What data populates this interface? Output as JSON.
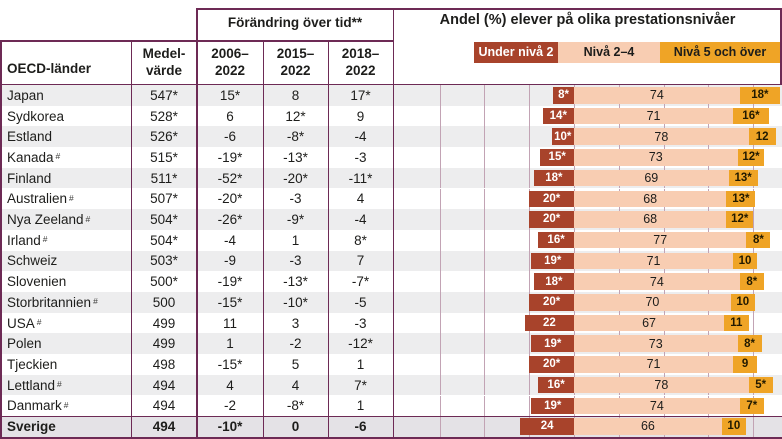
{
  "header": {
    "country_col": "OECD-länder",
    "mean_col_line1": "Medel-",
    "mean_col_line2": "värde",
    "change_group": "Förändring över tid**",
    "periods": [
      "2006–\n2022",
      "2015–\n2022",
      "2018–\n2022"
    ],
    "chart_title": "Andel (%) elever på olika prestationsnivåer"
  },
  "legend": [
    {
      "label": "Under nivå 2",
      "color": "#a8432b",
      "text_color": "#ffffff"
    },
    {
      "label": "Nivå 2–4",
      "color": "#f8cdb2",
      "text_color": "#1d1d1b"
    },
    {
      "label": "Nivå 5 och över",
      "color": "#efa426",
      "text_color": "#1d1d1b"
    }
  ],
  "colors": {
    "border": "#6d2a55",
    "stripe": "#ededee",
    "white_row": "#ffffff",
    "sweden_row_bg": "#e4e2e6",
    "gridline": "#c2a3b4",
    "under2": "#a8432b",
    "niva24": "#f8cdb2",
    "niva5": "#efa426",
    "text": "#1d1d1b"
  },
  "chart_data": {
    "type": "bar",
    "subtype": "diverging-stacked-horizontal",
    "unit": "%",
    "title": "Andel (%) elever på olika prestationsnivåer",
    "series_names": [
      "Under nivå 2",
      "Nivå 2–4",
      "Nivå 5 och över"
    ],
    "note": "Under nivå 2 extends left of the zero baseline; Nivå 2–4 and Nivå 5 och över extend right. * marks statistically significant values; # marks countries footnoted in source.",
    "gridline_step_pct": 20,
    "axis_range_pct": [
      -80,
      90
    ],
    "categories": [
      "Japan",
      "Sydkorea",
      "Estland",
      "Kanada",
      "Finland",
      "Australien",
      "Nya Zeeland",
      "Irland",
      "Schweiz",
      "Slovenien",
      "Storbritannien",
      "USA",
      "Polen",
      "Tjeckien",
      "Lettland",
      "Danmark",
      "Sverige"
    ],
    "rows": [
      {
        "country": "Japan",
        "sup": "",
        "mean": "547*",
        "c2006": "15*",
        "c2015": "8",
        "c2018": "17*",
        "under2": "8*",
        "niva24": "74",
        "niva5": "18*",
        "bold": false
      },
      {
        "country": "Sydkorea",
        "sup": "",
        "mean": "528*",
        "c2006": "6",
        "c2015": "12*",
        "c2018": "9",
        "under2": "14*",
        "niva24": "71",
        "niva5": "16*",
        "bold": false
      },
      {
        "country": "Estland",
        "sup": "",
        "mean": "526*",
        "c2006": "-6",
        "c2015": "-8*",
        "c2018": "-4",
        "under2": "10*",
        "niva24": "78",
        "niva5": "12",
        "bold": false
      },
      {
        "country": "Kanada",
        "sup": "#",
        "mean": "515*",
        "c2006": "-19*",
        "c2015": "-13*",
        "c2018": "-3",
        "under2": "15*",
        "niva24": "73",
        "niva5": "12*",
        "bold": false
      },
      {
        "country": "Finland",
        "sup": "",
        "mean": "511*",
        "c2006": "-52*",
        "c2015": "-20*",
        "c2018": "-11*",
        "under2": "18*",
        "niva24": "69",
        "niva5": "13*",
        "bold": false
      },
      {
        "country": "Australien",
        "sup": "#",
        "mean": "507*",
        "c2006": "-20*",
        "c2015": "-3",
        "c2018": "4",
        "under2": "20*",
        "niva24": "68",
        "niva5": "13*",
        "bold": false
      },
      {
        "country": "Nya Zeeland",
        "sup": "#",
        "mean": "504*",
        "c2006": "-26*",
        "c2015": "-9*",
        "c2018": "-4",
        "under2": "20*",
        "niva24": "68",
        "niva5": "12*",
        "bold": false
      },
      {
        "country": "Irland",
        "sup": "#",
        "mean": "504*",
        "c2006": "-4",
        "c2015": "1",
        "c2018": "8*",
        "under2": "16*",
        "niva24": "77",
        "niva5": "8*",
        "bold": false
      },
      {
        "country": "Schweiz",
        "sup": "",
        "mean": "503*",
        "c2006": "-9",
        "c2015": "-3",
        "c2018": "7",
        "under2": "19*",
        "niva24": "71",
        "niva5": "10",
        "bold": false
      },
      {
        "country": "Slovenien",
        "sup": "",
        "mean": "500*",
        "c2006": "-19*",
        "c2015": "-13*",
        "c2018": "-7*",
        "under2": "18*",
        "niva24": "74",
        "niva5": "8*",
        "bold": false
      },
      {
        "country": "Storbritannien",
        "sup": "#",
        "mean": "500",
        "c2006": "-15*",
        "c2015": "-10*",
        "c2018": "-5",
        "under2": "20*",
        "niva24": "70",
        "niva5": "10",
        "bold": false
      },
      {
        "country": "USA",
        "sup": "#",
        "mean": "499",
        "c2006": "11",
        "c2015": "3",
        "c2018": "-3",
        "under2": "22",
        "niva24": "67",
        "niva5": "11",
        "bold": false
      },
      {
        "country": "Polen",
        "sup": "",
        "mean": "499",
        "c2006": "1",
        "c2015": "-2",
        "c2018": "-12*",
        "under2": "19*",
        "niva24": "73",
        "niva5": "8*",
        "bold": false
      },
      {
        "country": "Tjeckien",
        "sup": "",
        "mean": "498",
        "c2006": "-15*",
        "c2015": "5",
        "c2018": "1",
        "under2": "20*",
        "niva24": "71",
        "niva5": "9",
        "bold": false
      },
      {
        "country": "Lettland",
        "sup": "#",
        "mean": "494",
        "c2006": "4",
        "c2015": "4",
        "c2018": "7*",
        "under2": "16*",
        "niva24": "78",
        "niva5": "5*",
        "bold": false
      },
      {
        "country": "Danmark",
        "sup": "#",
        "mean": "494",
        "c2006": "-2",
        "c2015": "-8*",
        "c2018": "1",
        "under2": "19*",
        "niva24": "74",
        "niva5": "7*",
        "bold": false
      },
      {
        "country": "Sverige",
        "sup": "",
        "mean": "494",
        "c2006": "-10*",
        "c2015": "0",
        "c2018": "-6",
        "under2": "24",
        "niva24": "66",
        "niva5": "10",
        "bold": true
      }
    ]
  }
}
